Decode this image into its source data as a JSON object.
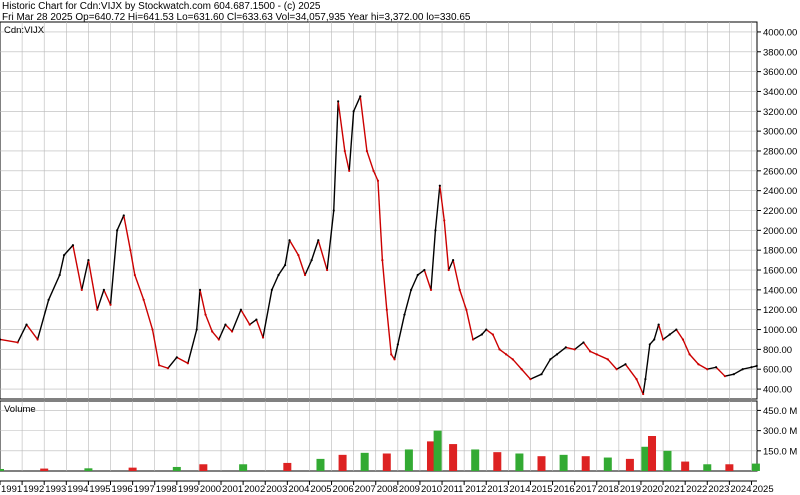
{
  "header": {
    "line1": "Historic Chart for Cdn:VIJX by Stockwatch.com 604.687.1500 - (c) 2025",
    "line2": "Fri Mar 28 2025   Op=640.72   Hi=641.53   Lo=631.60   Cl=633.63   Vol=34,057,935   Year hi=3,372.00   lo=330.65"
  },
  "colors": {
    "up": "#000000",
    "down": "#cc0000",
    "grid": "#b8b8b8",
    "vol_up": "#33aa33",
    "vol_down": "#dd2222"
  },
  "chart_data": [
    {
      "type": "line",
      "title": "Cdn:VIJX",
      "ylim": [
        300,
        4100
      ],
      "yticks": [
        "400.00",
        "600.00",
        "800.00",
        "1000.00",
        "1200.00",
        "1400.00",
        "1600.00",
        "1800.00",
        "2000.00",
        "2200.00",
        "2400.00",
        "2600.00",
        "2800.00",
        "3000.00",
        "3200.00",
        "3400.00",
        "3600.00",
        "3800.00",
        "4000.00"
      ],
      "ytick_values": [
        400,
        600,
        800,
        1000,
        1200,
        1400,
        1600,
        1800,
        2000,
        2200,
        2400,
        2600,
        2800,
        3000,
        3200,
        3400,
        3600,
        3800,
        4000
      ],
      "x": [
        1991.0,
        1991.8,
        1992.2,
        1992.7,
        1993.2,
        1993.7,
        1993.9,
        1994.3,
        1994.7,
        1995.0,
        1995.4,
        1995.7,
        1996.0,
        1996.3,
        1996.6,
        1996.9,
        1997.1,
        1997.5,
        1997.9,
        1998.2,
        1998.6,
        1999.0,
        1999.5,
        1999.9,
        2000.05,
        2000.3,
        2000.6,
        2000.9,
        2001.2,
        2001.5,
        2001.9,
        2002.3,
        2002.6,
        2002.9,
        2003.3,
        2003.6,
        2003.9,
        2004.1,
        2004.5,
        2004.8,
        2005.1,
        2005.4,
        2005.8,
        2006.1,
        2006.3,
        2006.6,
        2006.8,
        2007.0,
        2007.3,
        2007.6,
        2007.9,
        2008.1,
        2008.3,
        2008.5,
        2008.7,
        2008.85,
        2009.0,
        2009.3,
        2009.6,
        2009.9,
        2010.2,
        2010.5,
        2010.7,
        2010.9,
        2011.1,
        2011.3,
        2011.5,
        2011.8,
        2012.1,
        2012.4,
        2012.8,
        2013.0,
        2013.3,
        2013.6,
        2013.9,
        2014.2,
        2014.6,
        2015.0,
        2015.5,
        2015.9,
        2016.2,
        2016.6,
        2017.0,
        2017.4,
        2017.7,
        2018.0,
        2018.5,
        2018.9,
        2019.3,
        2019.8,
        2020.1,
        2020.2,
        2020.4,
        2020.6,
        2020.8,
        2021.0,
        2021.3,
        2021.6,
        2021.9,
        2022.2,
        2022.6,
        2023.0,
        2023.4,
        2023.8,
        2024.2,
        2024.6,
        2025.0,
        2025.24
      ],
      "y": [
        900,
        870,
        1050,
        900,
        1300,
        1550,
        1750,
        1850,
        1400,
        1700,
        1200,
        1400,
        1250,
        2000,
        2150,
        1800,
        1550,
        1300,
        1000,
        640,
        610,
        720,
        660,
        1000,
        1400,
        1150,
        980,
        900,
        1050,
        980,
        1200,
        1050,
        1100,
        920,
        1400,
        1550,
        1650,
        1900,
        1750,
        1550,
        1700,
        1900,
        1600,
        2200,
        3300,
        2800,
        2600,
        3200,
        3350,
        2800,
        2600,
        2500,
        1700,
        1200,
        750,
        700,
        850,
        1150,
        1400,
        1550,
        1600,
        1400,
        2000,
        2450,
        2100,
        1600,
        1700,
        1400,
        1200,
        900,
        950,
        1000,
        950,
        800,
        750,
        700,
        600,
        500,
        550,
        700,
        750,
        820,
        800,
        870,
        780,
        750,
        700,
        600,
        650,
        500,
        350,
        500,
        850,
        900,
        1050,
        900,
        950,
        1000,
        900,
        750,
        650,
        600,
        620,
        530,
        550,
        600,
        620,
        633.63
      ]
    },
    {
      "type": "bar",
      "title": "Volume",
      "ylim": [
        0,
        520
      ],
      "yticks": [
        "150.0 M",
        "300.0 M",
        "450.0 M"
      ],
      "ytick_values": [
        150,
        300,
        450
      ],
      "x": [
        1991,
        1993,
        1995,
        1997,
        1999,
        2000.2,
        2002,
        2004,
        2005.5,
        2006.5,
        2007.5,
        2008.5,
        2009.5,
        2010.5,
        2010.8,
        2011.5,
        2012.5,
        2013.5,
        2014.5,
        2015.5,
        2016.5,
        2017.5,
        2018.5,
        2019.5,
        2020.2,
        2020.5,
        2021.2,
        2022,
        2023,
        2024,
        2025.2
      ],
      "y": [
        15,
        18,
        20,
        25,
        30,
        50,
        50,
        60,
        90,
        120,
        135,
        130,
        160,
        220,
        300,
        200,
        160,
        140,
        130,
        110,
        120,
        110,
        100,
        90,
        180,
        260,
        150,
        70,
        50,
        50,
        55
      ]
    }
  ],
  "xaxis": {
    "labels": [
      "1991",
      "1992",
      "1993",
      "1994",
      "1995",
      "1996",
      "1997",
      "1998",
      "1999",
      "2000",
      "2001",
      "2002",
      "2003",
      "2004",
      "2005",
      "2006",
      "2007",
      "2008",
      "2009",
      "2010",
      "2011",
      "2012",
      "2013",
      "2014",
      "2015",
      "2016",
      "2017",
      "2018",
      "2019",
      "2020",
      "2021",
      "2022",
      "2023",
      "2024",
      "2025"
    ],
    "start": 1991.0,
    "end": 2025.25
  }
}
